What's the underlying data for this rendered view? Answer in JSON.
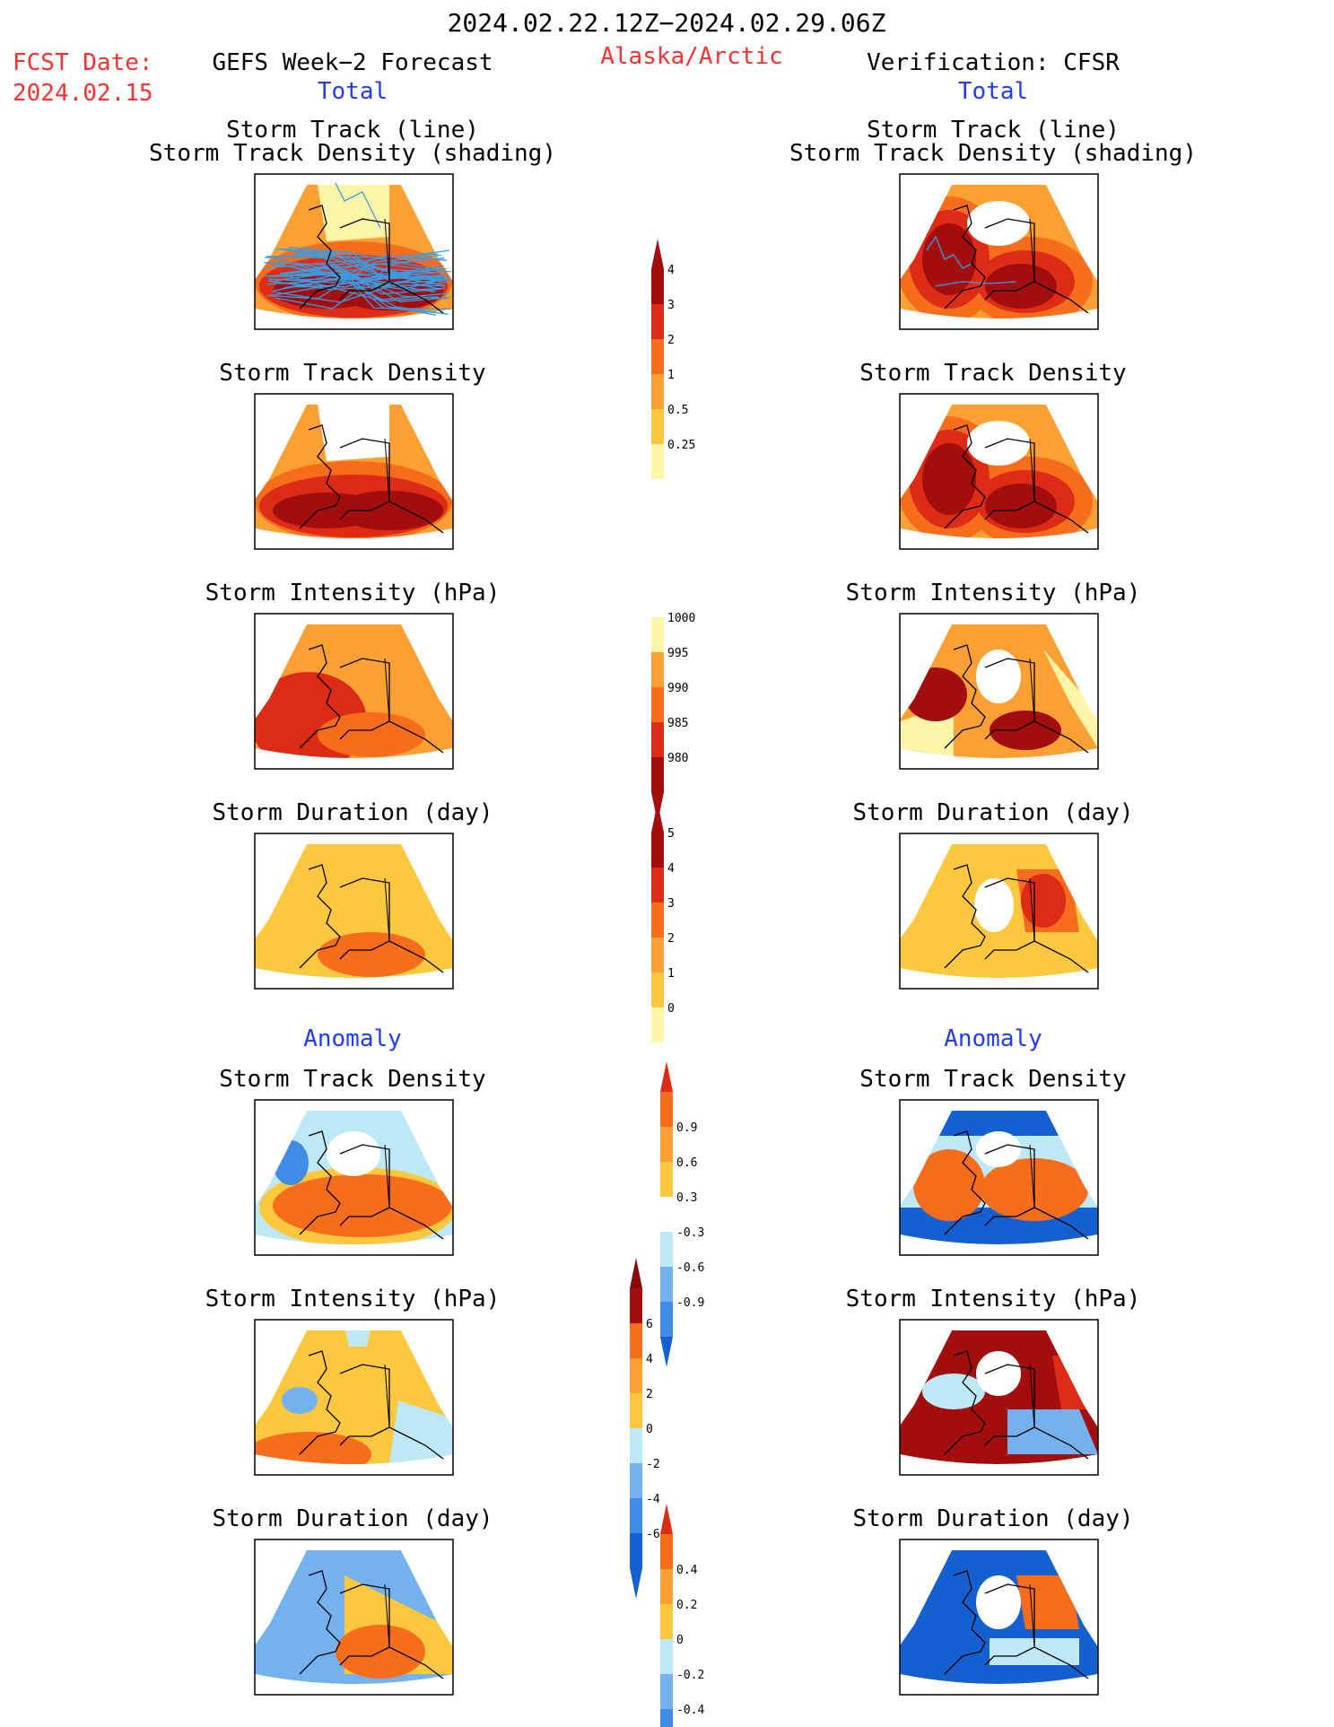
{
  "header": {
    "date_range": "2024.02.22.12Z−2024.02.29.06Z",
    "fcst_label": "FCST Date:",
    "fcst_date": "2024.02.15",
    "region": "Alaska/Arctic",
    "left_title": "GEFS Week−2 Forecast",
    "right_title": "Verification: CFSR",
    "total_label": "Total",
    "anomaly_label": "Anomaly"
  },
  "panel_titles": {
    "track_line": "Storm Track (line)",
    "track_shading": "Storm Track Density (shading)",
    "density": "Storm Track Density",
    "intensity": "Storm Intensity (hPa)",
    "duration": "Storm Duration (day)"
  },
  "colors": {
    "pale_yellow": "#fff5a8",
    "yellow": "#fdc83e",
    "light_orange": "#fca034",
    "orange": "#f86d1c",
    "red": "#de2b16",
    "dark_red": "#a40d0d",
    "light_blue": "#bde9f7",
    "mid_blue": "#73b2ee",
    "blue": "#3f8be6",
    "dark_blue": "#1560d0",
    "track_line": "#3c9be0"
  },
  "chart_data": [
    {
      "type": "heatmap",
      "title": "Storm Track Density",
      "panels": [
        "GEFS Week-2 Forecast: Storm Track (line) / Storm Track Density (shading)",
        "GEFS Week-2 Forecast: Storm Track Density",
        "Verification CFSR: Storm Track (line) / Storm Track Density (shading)",
        "Verification CFSR: Storm Track Density"
      ],
      "colorbar_levels": [
        0.25,
        0.5,
        1,
        2,
        3,
        4
      ],
      "colorbar_colors": [
        "#fff5a8",
        "#fdc83e",
        "#fca034",
        "#f86d1c",
        "#de2b16",
        "#a40d0d"
      ]
    },
    {
      "type": "heatmap",
      "title": "Storm Intensity (hPa)",
      "colorbar_levels": [
        1000,
        995,
        990,
        985,
        980
      ],
      "colorbar_colors": [
        "#fff5a8",
        "#fca034",
        "#f86d1c",
        "#de2b16",
        "#a40d0d"
      ]
    },
    {
      "type": "heatmap",
      "title": "Storm Duration (day)",
      "colorbar_levels": [
        0,
        1,
        2,
        3,
        4,
        5
      ],
      "colorbar_colors": [
        "#fff5a8",
        "#fdc83e",
        "#fca034",
        "#f86d1c",
        "#de2b16",
        "#a40d0d"
      ]
    },
    {
      "type": "heatmap",
      "title": "Anomaly: Storm Track Density",
      "colorbar_levels": [
        0.9,
        0.6,
        0.3,
        -0.3,
        -0.6,
        -0.9
      ],
      "colorbar_colors": [
        "#f86d1c",
        "#fca034",
        "#fdc83e",
        "#ffffff",
        "#bde9f7",
        "#73b2ee",
        "#3f8be6"
      ]
    },
    {
      "type": "heatmap",
      "title": "Anomaly: Storm Intensity (hPa)",
      "colorbar_levels": [
        6,
        4,
        2,
        0,
        -2,
        -4,
        -6
      ],
      "colorbar_colors": [
        "#a40d0d",
        "#f86d1c",
        "#fca034",
        "#fdc83e",
        "#bde9f7",
        "#73b2ee",
        "#3f8be6",
        "#1560d0"
      ]
    },
    {
      "type": "heatmap",
      "title": "Anomaly: Storm Duration (day)",
      "colorbar_levels": [
        0.4,
        0.2,
        0,
        -0.2,
        -0.4
      ],
      "colorbar_colors": [
        "#f86d1c",
        "#fca034",
        "#fdc83e",
        "#bde9f7",
        "#73b2ee",
        "#3f8be6"
      ]
    }
  ]
}
